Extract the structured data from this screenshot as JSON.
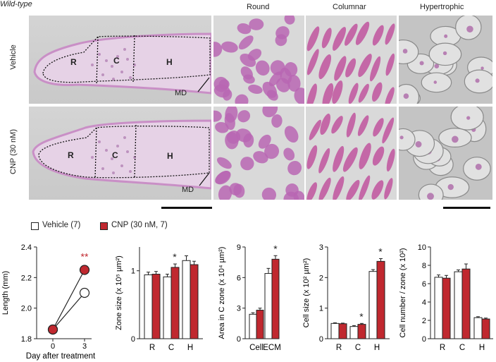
{
  "figure": {
    "title": "Wild-type",
    "col_headers": [
      "Round",
      "Columnar",
      "Hypertrophic"
    ],
    "row_labels": [
      "Vehicle",
      "CNP (30 nM)"
    ],
    "zone_labels": [
      "R",
      "C",
      "H"
    ],
    "md_label": "MD"
  },
  "legend": {
    "vehicle": "Vehicle (7)",
    "cnp": "CNP (30 nM, 7)"
  },
  "colors": {
    "vehicle": "#ffffff",
    "cnp": "#c0282f",
    "stain": "#b35aa6",
    "tissue": "#e9d4ea"
  },
  "chart_data": [
    {
      "type": "line",
      "ylabel": "Length (mm)",
      "xlabel": "Day after treatment",
      "x": [
        0,
        3
      ],
      "xticks": [
        "0",
        "3"
      ],
      "yticks": [
        "1.8",
        "2.0",
        "2.2",
        "2.4"
      ],
      "ylim": [
        1.8,
        2.4
      ],
      "series": [
        {
          "name": "Vehicle (7)",
          "values": [
            1.86,
            2.1
          ]
        },
        {
          "name": "CNP (30 nM, 7)",
          "values": [
            1.86,
            2.25
          ]
        }
      ],
      "annotations": [
        "**"
      ]
    },
    {
      "type": "bar",
      "ylabel": "Zone size (x 10⁵ µm²)",
      "categories": [
        "R",
        "C",
        "H"
      ],
      "yticks": [
        "0",
        "1"
      ],
      "ylim": [
        0,
        1.35
      ],
      "series": [
        {
          "name": "Vehicle (7)",
          "values": [
            0.94,
            0.91,
            1.15
          ],
          "err": [
            0.04,
            0.04,
            0.07
          ]
        },
        {
          "name": "CNP (30 nM, 7)",
          "values": [
            0.95,
            1.05,
            1.09
          ],
          "err": [
            0.04,
            0.05,
            0.05
          ]
        }
      ],
      "annotations": [
        "*"
      ]
    },
    {
      "type": "bar",
      "ylabel": "Area in C zone (x 10⁴ µm²)",
      "categories": [
        "Cell",
        "ECM"
      ],
      "yticks": [
        "0",
        "3",
        "6",
        "9"
      ],
      "ylim": [
        0,
        9
      ],
      "series": [
        {
          "name": "Vehicle (7)",
          "values": [
            2.4,
            6.4
          ],
          "err": [
            0.15,
            0.5
          ]
        },
        {
          "name": "CNP (30 nM, 7)",
          "values": [
            2.8,
            7.8
          ],
          "err": [
            0.2,
            0.35
          ]
        }
      ],
      "annotations": [
        "*"
      ]
    },
    {
      "type": "bar",
      "ylabel": "Cell size (x 10² µm²)",
      "categories": [
        "R",
        "C",
        "H"
      ],
      "yticks": [
        "0",
        "1",
        "2",
        "3"
      ],
      "ylim": [
        0,
        3
      ],
      "series": [
        {
          "name": "Vehicle (7)",
          "values": [
            0.5,
            0.4,
            2.2
          ],
          "err": [
            0.02,
            0.03,
            0.06
          ]
        },
        {
          "name": "CNP (30 nM, 7)",
          "values": [
            0.49,
            0.47,
            2.53
          ],
          "err": [
            0.02,
            0.03,
            0.09
          ]
        }
      ],
      "annotations": [
        "*",
        "*"
      ]
    },
    {
      "type": "bar",
      "ylabel": "Cell number / zone (x 10²)",
      "categories": [
        "R",
        "C",
        "H"
      ],
      "yticks": [
        "0",
        "2",
        "4",
        "6",
        "8",
        "10"
      ],
      "ylim": [
        0,
        10
      ],
      "series": [
        {
          "name": "Vehicle (7)",
          "values": [
            6.7,
            7.3,
            2.3
          ],
          "err": [
            0.25,
            0.2,
            0.1
          ]
        },
        {
          "name": "CNP (30 nM, 7)",
          "values": [
            6.6,
            7.6,
            2.15
          ],
          "err": [
            0.3,
            0.55,
            0.1
          ]
        }
      ]
    }
  ]
}
